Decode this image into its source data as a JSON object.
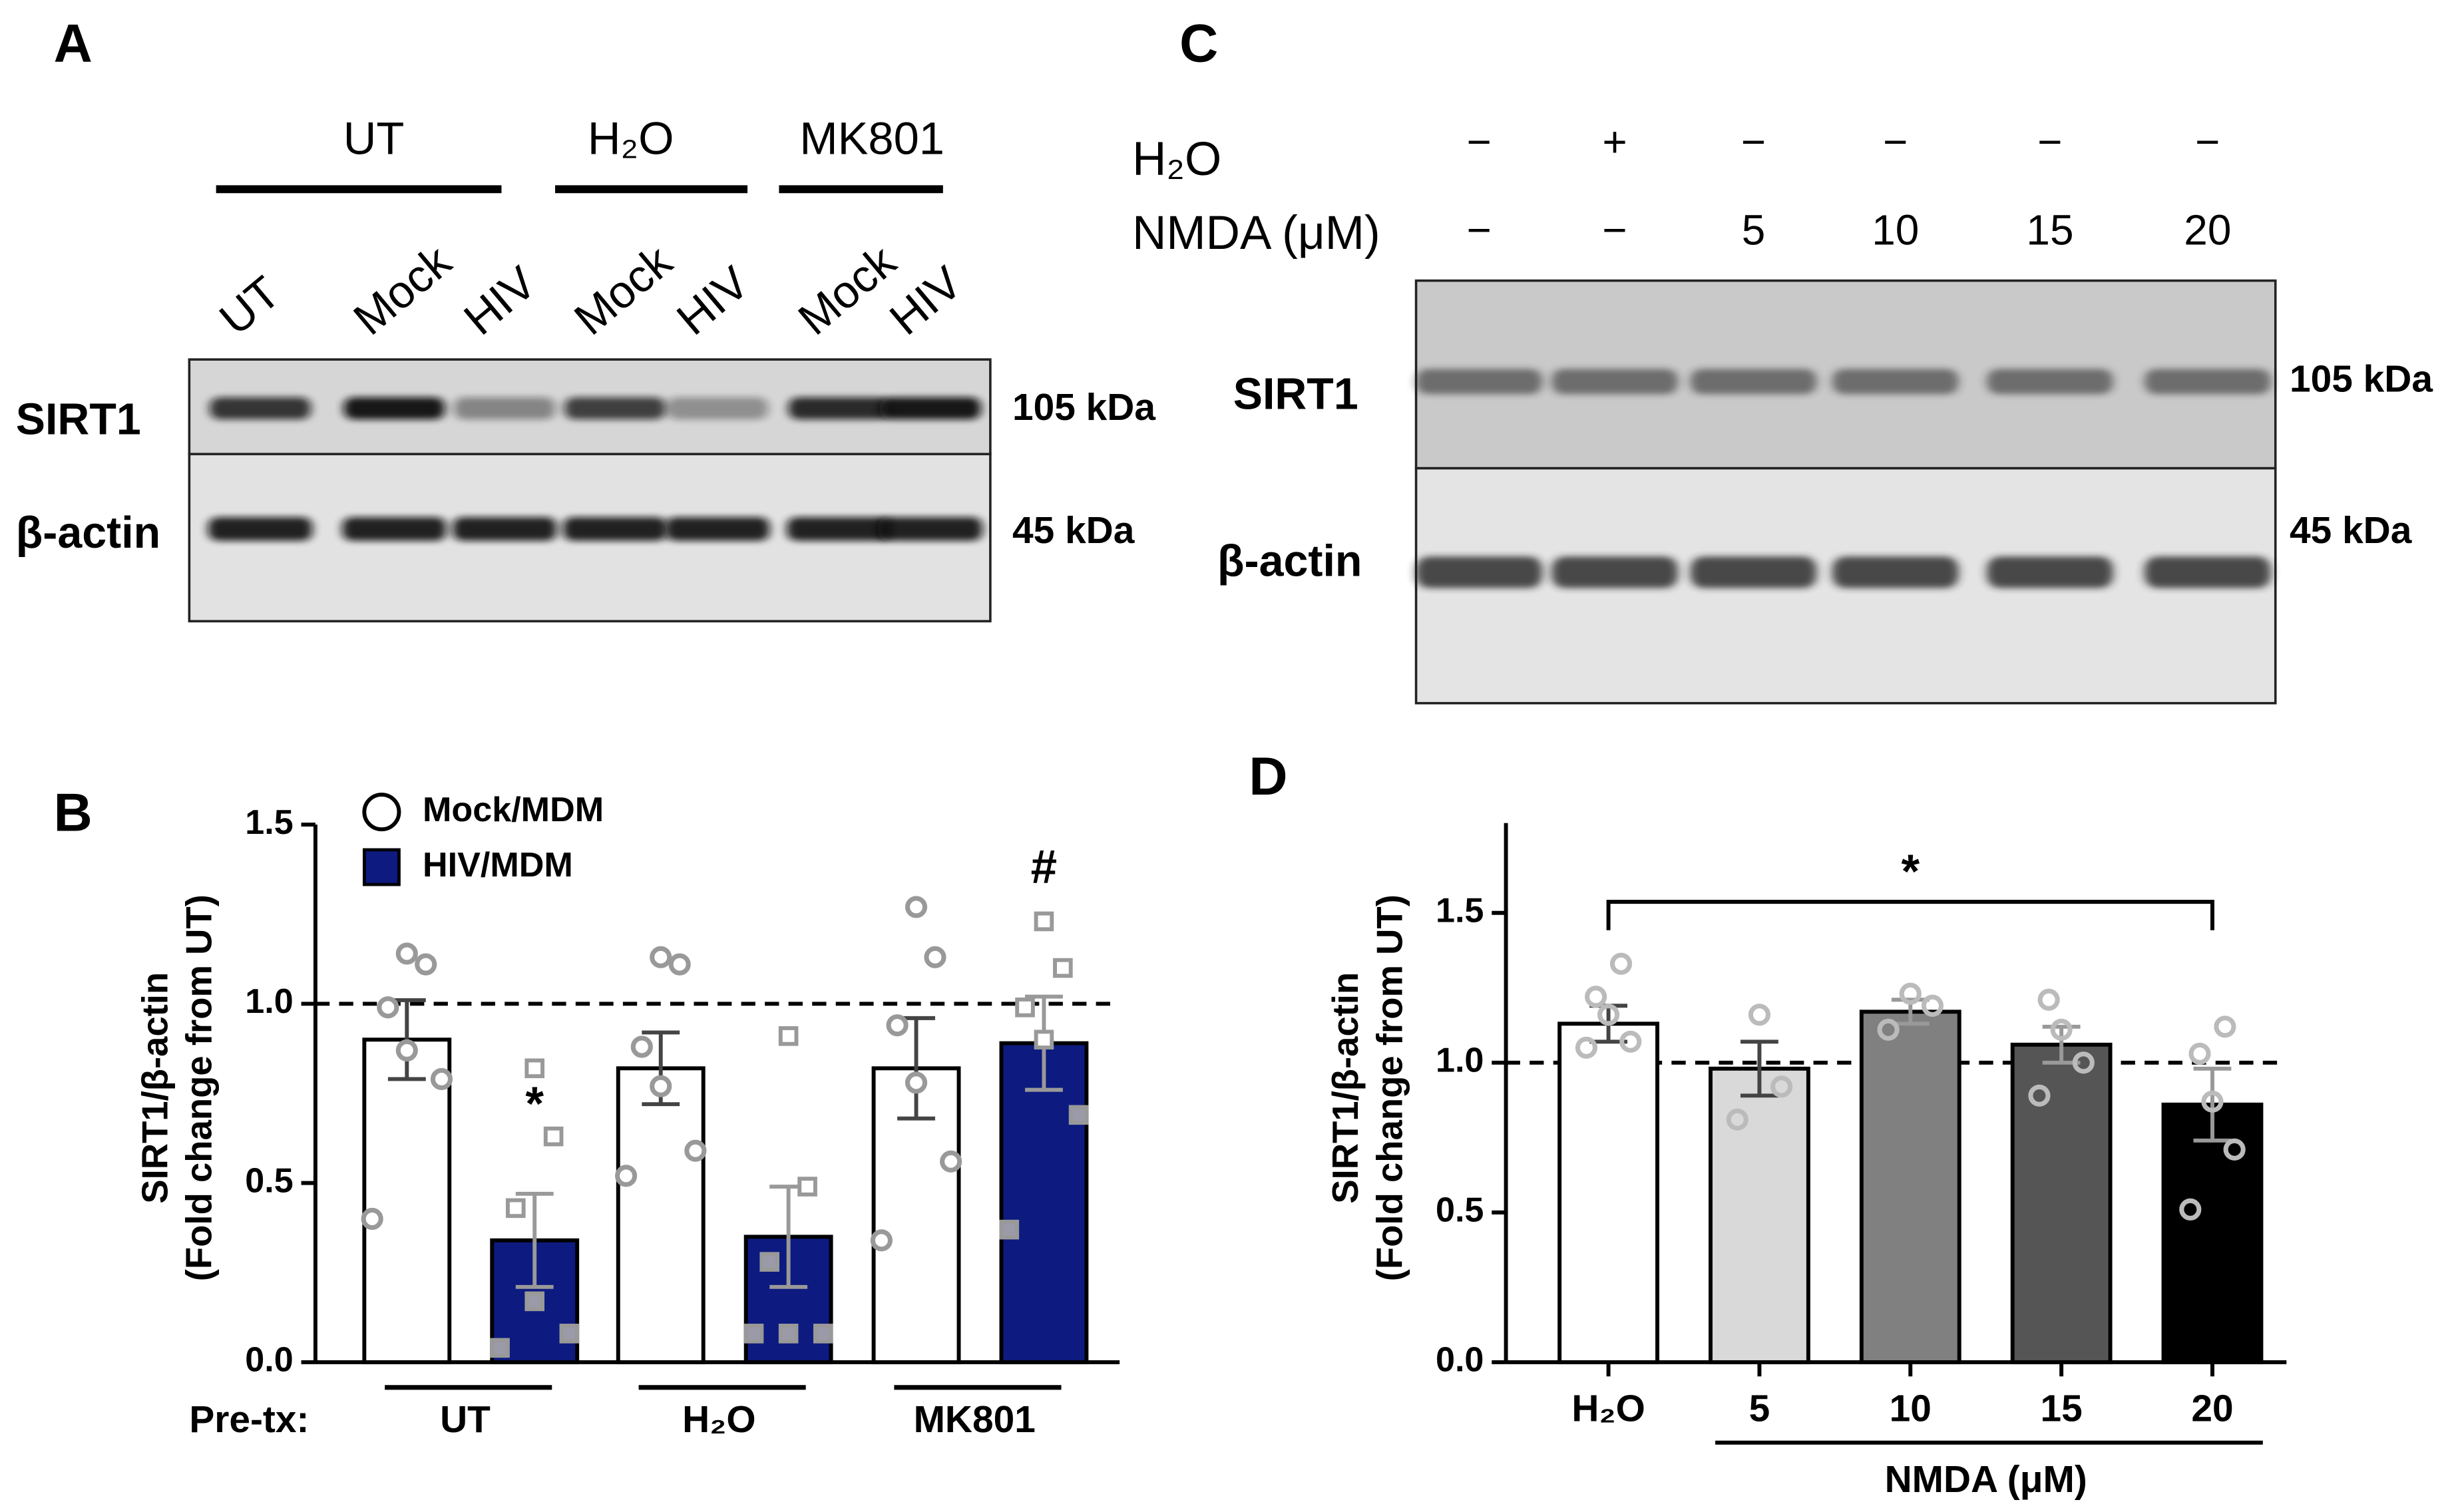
{
  "blots": [
    {
      "panel": "A",
      "groups": [
        "UT",
        "H₂O",
        "MK801"
      ],
      "lanes": [
        "UT",
        "Mock",
        "HIV",
        "Mock",
        "HIV",
        "Mock",
        "HIV"
      ],
      "rows": [
        {
          "name": "SIRT1",
          "size": "105 kDa"
        },
        {
          "name": "β-actin",
          "size": "45 kDa"
        }
      ]
    },
    {
      "panel": "C",
      "conditions": [
        {
          "name": "H₂O",
          "lanes": [
            "−",
            "+",
            "−",
            "−",
            "−",
            "−"
          ]
        },
        {
          "name": "NMDA (μM)",
          "lanes": [
            "−",
            "−",
            "5",
            "10",
            "15",
            "20"
          ]
        }
      ],
      "rows": [
        {
          "name": "SIRT1",
          "size": "105 kDa"
        },
        {
          "name": "β-actin",
          "size": "45 kDa"
        }
      ]
    }
  ],
  "chart_data": [
    {
      "panel": "B",
      "type": "grouped-bar",
      "y_label": [
        "SIRT1/β-actin",
        "(Fold change from UT)"
      ],
      "category_prefix": "Pre-tx:",
      "categories": [
        "UT",
        "H₂O",
        "MK801"
      ],
      "series": [
        {
          "name": "Mock/MDM",
          "color": "#ffffff",
          "marker": "circle",
          "values": [
            0.9,
            0.82,
            0.82
          ],
          "errors": [
            0.11,
            0.1,
            0.14
          ],
          "points": [
            [
              0.4,
              0.79,
              0.87,
              0.99,
              1.11,
              1.14
            ],
            [
              0.52,
              0.59,
              0.77,
              0.88,
              1.11,
              1.13
            ],
            [
              0.34,
              0.56,
              0.78,
              0.94,
              1.13,
              1.27
            ]
          ]
        },
        {
          "name": "HIV/MDM",
          "color": "#0d1a80",
          "marker": "square",
          "values": [
            0.34,
            0.35,
            0.89
          ],
          "errors": [
            0.13,
            0.14,
            0.13
          ],
          "points": [
            [
              0.04,
              0.08,
              0.17,
              0.43,
              0.63,
              0.82
            ],
            [
              0.08,
              0.08,
              0.08,
              0.28,
              0.49,
              0.91
            ],
            [
              0.37,
              0.69,
              0.9,
              0.99,
              1.1,
              1.23
            ]
          ],
          "annotations": [
            "*",
            null,
            "#"
          ]
        }
      ],
      "ylim": [
        0,
        1.5
      ],
      "yticks": [
        {
          "value": 0,
          "label": "0.0"
        },
        0.5,
        {
          "value": 1,
          "label": "1.0"
        },
        1.5
      ],
      "reference_line": 1
    },
    {
      "panel": "D",
      "type": "bar",
      "y_label": [
        "SIRT1/β-actin",
        "(Fold change from UT)"
      ],
      "categories": [
        "H₂O",
        "5",
        "10",
        "15",
        "20"
      ],
      "x_label": "NMDA (μM)",
      "values": [
        1.13,
        0.98,
        1.17,
        1.06,
        0.86
      ],
      "errors": [
        0.06,
        0.09,
        0.04,
        0.06,
        0.12
      ],
      "colors": [
        "#ffffff",
        "#d9d9d9",
        "#808080",
        "#555555",
        "#000000"
      ],
      "points": [
        [
          1.05,
          1.07,
          1.16,
          1.22,
          1.33
        ],
        [
          0.81,
          0.92,
          1.16
        ],
        [
          1.11,
          1.19,
          1.23
        ],
        [
          0.89,
          1.0,
          1.11,
          1.21
        ],
        [
          0.51,
          0.71,
          0.87,
          1.03,
          1.12
        ]
      ],
      "significance": "*",
      "ylim": [
        0,
        1.8
      ],
      "yticks": [
        {
          "value": 0,
          "label": "0.0"
        },
        0.5,
        {
          "value": 1,
          "label": "1.0"
        },
        1.5
      ],
      "reference_line": 1
    }
  ]
}
